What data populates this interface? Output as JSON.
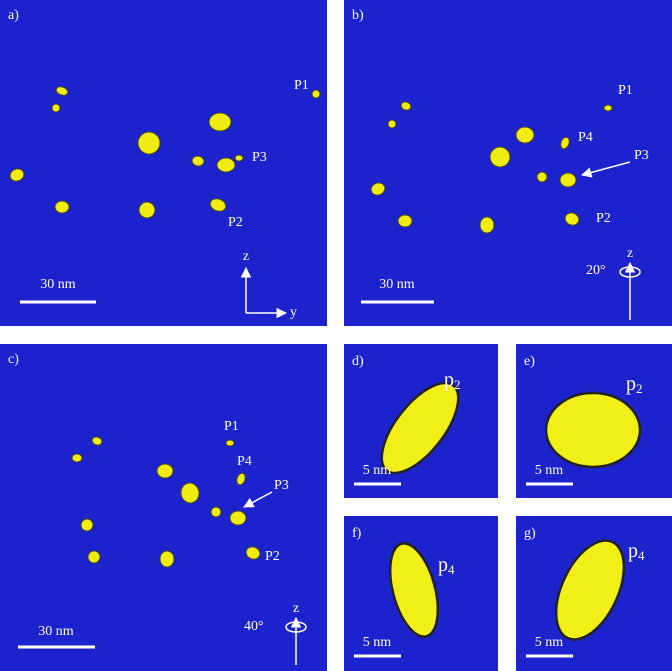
{
  "panels": [
    {
      "label": "a)",
      "particles": [
        "P1",
        "P3",
        "P2"
      ],
      "scale_bar": "30 nm",
      "axes": [
        "z",
        "y"
      ]
    },
    {
      "label": "b)",
      "particles": [
        "P1",
        "P4",
        "P3",
        "P2"
      ],
      "scale_bar": "30 nm",
      "rotation": "20°",
      "axes": [
        "z"
      ]
    },
    {
      "label": "c)",
      "particles": [
        "P1",
        "P4",
        "P3",
        "P2"
      ],
      "scale_bar": "30 nm",
      "rotation": "40°",
      "axes": [
        "z"
      ]
    },
    {
      "label": "d)",
      "particle": {
        "main": "p",
        "sub": "2"
      },
      "scale_bar": "5 nm"
    },
    {
      "label": "e)",
      "particle": {
        "main": "p",
        "sub": "2"
      },
      "scale_bar": "5 nm"
    },
    {
      "label": "f)",
      "particle": {
        "main": "p",
        "sub": "4"
      },
      "scale_bar": "5 nm"
    },
    {
      "label": "g)",
      "particle": {
        "main": "p",
        "sub": "4"
      },
      "scale_bar": "5 nm"
    }
  ]
}
